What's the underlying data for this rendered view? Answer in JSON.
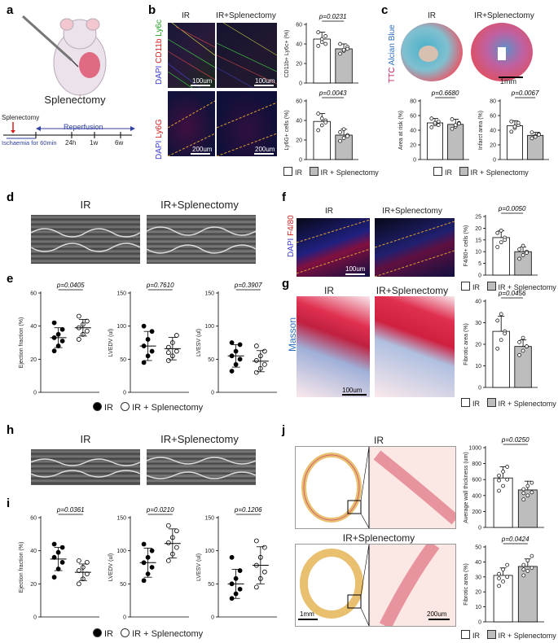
{
  "panels": {
    "a": {
      "label": "a",
      "title": "Splenectomy",
      "timeline": {
        "surgery": "Splenectomy",
        "phase": "Reperfusion",
        "ischaemia": "Ischaemia for 60min",
        "t1": "24h",
        "t2": "1w",
        "t3": "6w"
      }
    },
    "b": {
      "label": "b",
      "col1": "IR",
      "col2": "IR+Splenectomy",
      "row1_stain": [
        "DAPI",
        "CD11b",
        "Ly6c"
      ],
      "row2_stain": [
        "DAPI",
        "Ly6G"
      ],
      "scale1": "100um",
      "scale2": "200um",
      "legend_ir": "IR",
      "legend_sp": "IR + Splenectomy"
    },
    "c": {
      "label": "c",
      "col1": "IR",
      "col2": "IR+Splenectomy",
      "stain": [
        "TTC",
        "Alcian Blue"
      ],
      "scale": "1mm",
      "legend_ir": "IR",
      "legend_sp": "IR + Splenectomy"
    },
    "d": {
      "label": "d",
      "col1": "IR",
      "col2": "IR+Splenectomy"
    },
    "e": {
      "label": "e",
      "legend_ir": "IR",
      "legend_sp": "IR + Splenectomy"
    },
    "f": {
      "label": "f",
      "col1": "IR",
      "col2": "IR+Splenectomy",
      "stain": [
        "DAPI",
        "F4/80"
      ],
      "scale": "100um",
      "legend_ir": "IR",
      "legend_sp": "IR + Splenectomy"
    },
    "g": {
      "label": "g",
      "col1": "IR",
      "col2": "IR+Splenectomy",
      "stain": "Masson",
      "scale": "100um",
      "legend_ir": "IR",
      "legend_sp": "IR + Splenectomy"
    },
    "h": {
      "label": "h",
      "col1": "IR",
      "col2": "IR+Splenectomy"
    },
    "i": {
      "label": "i",
      "legend_ir": "IR",
      "legend_sp": "IR + Splenectomy"
    },
    "j": {
      "label": "j",
      "row1": "IR",
      "row2": "IR+Splenectomy",
      "scale1": "1mm",
      "scale2": "200um",
      "legend_ir": "IR",
      "legend_sp": "IR + Splenectomy"
    }
  },
  "colors": {
    "ir_fill": "#ffffff",
    "sp_fill": "#bdbdbd",
    "pval": "#000000",
    "guide": "#f0a030"
  },
  "chart_data": [
    {
      "id": "b1",
      "type": "bar",
      "categories": [
        "IR",
        "IR + Splenectomy"
      ],
      "values": [
        45,
        35
      ],
      "errors": [
        7,
        5
      ],
      "ylabel": "CD11b+ Ly6c+ (%)",
      "ylim": [
        0,
        60
      ],
      "yticks": [
        0,
        20,
        40,
        60
      ],
      "pvalue": "p=0.0231",
      "points": [
        [
          38,
          42,
          48,
          52,
          45,
          40
        ],
        [
          30,
          33,
          37,
          40,
          34,
          35
        ]
      ]
    },
    {
      "id": "b2",
      "type": "bar",
      "categories": [
        "IR",
        "IR + Splenectomy"
      ],
      "values": [
        39,
        25
      ],
      "errors": [
        8,
        6
      ],
      "ylabel": "Ly6G+ cells (%)",
      "ylim": [
        0,
        60
      ],
      "yticks": [
        0,
        20,
        40,
        60
      ],
      "pvalue": "p=0.0043",
      "points": [
        [
          30,
          35,
          40,
          47,
          42,
          38
        ],
        [
          19,
          22,
          25,
          28,
          31,
          24
        ]
      ]
    },
    {
      "id": "c1",
      "type": "bar",
      "categories": [
        "IR",
        "IR + Splenectomy"
      ],
      "values": [
        50,
        48
      ],
      "errors": [
        6,
        7
      ],
      "ylabel": "Area at risk (%)",
      "ylim": [
        0,
        80
      ],
      "yticks": [
        0,
        20,
        40,
        60,
        80
      ],
      "pvalue": "p=0.6680",
      "points": [
        [
          44,
          48,
          52,
          56,
          50,
          47
        ],
        [
          42,
          45,
          50,
          55,
          47,
          49
        ]
      ]
    },
    {
      "id": "c2",
      "type": "bar",
      "categories": [
        "IR",
        "IR + Splenectomy"
      ],
      "values": [
        46,
        33
      ],
      "errors": [
        7,
        4
      ],
      "ylabel": "Infarct area (%)",
      "ylim": [
        0,
        80
      ],
      "yticks": [
        0,
        20,
        40,
        60,
        80
      ],
      "pvalue": "p=0.0067",
      "points": [
        [
          38,
          43,
          47,
          52,
          45,
          50
        ],
        [
          29,
          32,
          35,
          37,
          31,
          34
        ]
      ]
    },
    {
      "id": "e1",
      "type": "scatter",
      "categories": [
        "IR",
        "IR + Splenectomy"
      ],
      "means": [
        33,
        39
      ],
      "sds": [
        6,
        5
      ],
      "ylabel": "Ejection fraction (%)",
      "ylim": [
        0,
        60
      ],
      "yticks": [
        0,
        20,
        40,
        60
      ],
      "pvalue": "p=0.0405",
      "points": [
        [
          25,
          28,
          31,
          33,
          35,
          38,
          42
        ],
        [
          32,
          35,
          37,
          39,
          41,
          43,
          46
        ]
      ]
    },
    {
      "id": "e2",
      "type": "scatter",
      "categories": [
        "IR",
        "IR + Splenectomy"
      ],
      "means": [
        70,
        66
      ],
      "sds": [
        22,
        17
      ],
      "ylabel": "LVEDV (ul)",
      "ylim": [
        0,
        150
      ],
      "yticks": [
        0,
        50,
        100,
        150
      ],
      "pvalue": "p=0.7610",
      "points": [
        [
          45,
          55,
          62,
          70,
          80,
          92,
          100
        ],
        [
          48,
          55,
          62,
          68,
          75,
          86,
          60
        ]
      ]
    },
    {
      "id": "e3",
      "type": "scatter",
      "categories": [
        "IR",
        "IR + Splenectomy"
      ],
      "means": [
        55,
        47
      ],
      "sds": [
        17,
        16
      ],
      "ylabel": "LVESV (ul)",
      "ylim": [
        0,
        150
      ],
      "yticks": [
        0,
        50,
        100,
        150
      ],
      "pvalue": "p=0.3907",
      "points": [
        [
          32,
          42,
          50,
          55,
          62,
          72,
          75
        ],
        [
          30,
          36,
          42,
          48,
          55,
          62,
          70
        ]
      ]
    },
    {
      "id": "f1",
      "type": "bar",
      "categories": [
        "IR",
        "IR + Splenectomy"
      ],
      "values": [
        16,
        10
      ],
      "errors": [
        3,
        2
      ],
      "ylabel": "F4/80+ cells (%)",
      "ylim": [
        0,
        25
      ],
      "yticks": [
        0,
        5,
        10,
        15,
        20,
        25
      ],
      "pvalue": "p=0.0050",
      "points": [
        [
          12,
          14,
          16,
          18,
          19,
          15
        ],
        [
          7,
          8.5,
          10,
          11,
          12.5,
          9.5
        ]
      ]
    },
    {
      "id": "g1",
      "type": "bar",
      "categories": [
        "IR",
        "IR + Splenectomy"
      ],
      "values": [
        26,
        19
      ],
      "errors": [
        7,
        3
      ],
      "ylabel": "Fibrotic area (%)",
      "ylim": [
        0,
        40
      ],
      "yticks": [
        0,
        10,
        20,
        30,
        40
      ],
      "pvalue": "p=0.0456",
      "points": [
        [
          18,
          22,
          26,
          31,
          34,
          25
        ],
        [
          15,
          17,
          19,
          21,
          23,
          19
        ]
      ]
    },
    {
      "id": "i1",
      "type": "scatter",
      "categories": [
        "IR",
        "IR + Splenectomy"
      ],
      "means": [
        35,
        27
      ],
      "sds": [
        7,
        5
      ],
      "ylabel": "Ejection fraction (%)",
      "ylim": [
        0,
        60
      ],
      "yticks": [
        0,
        20,
        40,
        60
      ],
      "pvalue": "p=0.0361",
      "points": [
        [
          24,
          29,
          33,
          36,
          39,
          42,
          44
        ],
        [
          20,
          23,
          26,
          28,
          30,
          33,
          34
        ]
      ]
    },
    {
      "id": "i2",
      "type": "scatter",
      "categories": [
        "IR",
        "IR + Splenectomy"
      ],
      "means": [
        82,
        111
      ],
      "sds": [
        22,
        22
      ],
      "ylabel": "LVEDV (ul)",
      "ylim": [
        0,
        150
      ],
      "yticks": [
        0,
        50,
        100,
        150
      ],
      "pvalue": "p=0.0210",
      "points": [
        [
          55,
          65,
          75,
          82,
          90,
          100,
          110
        ],
        [
          85,
          95,
          105,
          112,
          120,
          130,
          138
        ]
      ]
    },
    {
      "id": "i3",
      "type": "scatter",
      "categories": [
        "IR",
        "IR + Splenectomy"
      ],
      "means": [
        50,
        78
      ],
      "sds": [
        22,
        28
      ],
      "ylabel": "LVESV (ul)",
      "ylim": [
        0,
        150
      ],
      "yticks": [
        0,
        50,
        100,
        150
      ],
      "pvalue": "p=0.1206",
      "points": [
        [
          28,
          35,
          42,
          50,
          58,
          70,
          90
        ],
        [
          45,
          58,
          68,
          78,
          90,
          105,
          115
        ]
      ]
    },
    {
      "id": "j1",
      "type": "bar",
      "categories": [
        "IR",
        "IR + Splenectomy"
      ],
      "values": [
        620,
        470
      ],
      "errors": [
        140,
        110
      ],
      "ylabel": "Average wall thickness (um)",
      "ylim": [
        0,
        1000
      ],
      "yticks": [
        0,
        200,
        400,
        600,
        800,
        1000
      ],
      "pvalue": "p=0.0250",
      "points": [
        [
          460,
          520,
          600,
          650,
          700,
          760,
          590
        ],
        [
          350,
          400,
          440,
          480,
          520,
          560,
          430
        ]
      ]
    },
    {
      "id": "j2",
      "type": "bar",
      "categories": [
        "IR",
        "IR + Splenectomy"
      ],
      "values": [
        31,
        37
      ],
      "errors": [
        5,
        5
      ],
      "ylabel": "Fibrotic area (%)",
      "ylim": [
        0,
        50
      ],
      "yticks": [
        0,
        10,
        20,
        30,
        40,
        50
      ],
      "pvalue": "p=0.0424",
      "points": [
        [
          24,
          27,
          30,
          32,
          35,
          38,
          29
        ],
        [
          31,
          34,
          36,
          38,
          41,
          44,
          35
        ]
      ]
    }
  ]
}
